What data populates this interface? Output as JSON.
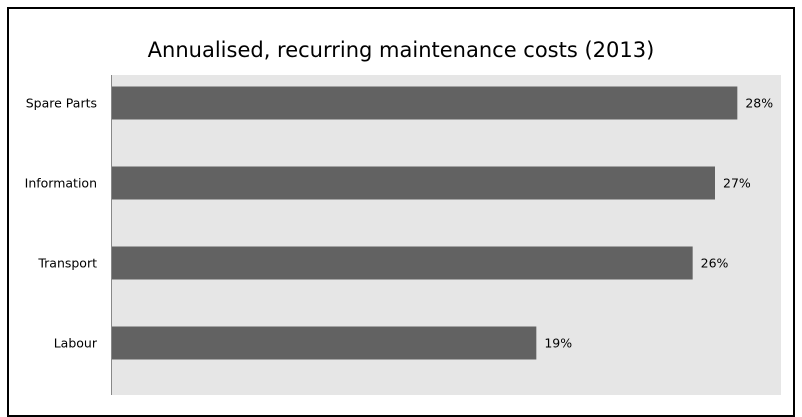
{
  "chart_data": {
    "type": "bar",
    "orientation": "horizontal",
    "title": "Annualised, recurring maintenance costs (2013)",
    "categories": [
      "Spare Parts",
      "Information",
      "Transport",
      "Labour"
    ],
    "values": [
      28,
      27,
      26,
      19
    ],
    "value_labels": [
      "28%",
      "27%",
      "26%",
      "19%"
    ],
    "unit": "%",
    "xlim": [
      0,
      30
    ],
    "xlabel": "",
    "ylabel": "",
    "grid": false,
    "legend": "none",
    "colors": {
      "bar": "#626262",
      "plot_background": "#e6e6e6",
      "axis": "#888888"
    }
  }
}
